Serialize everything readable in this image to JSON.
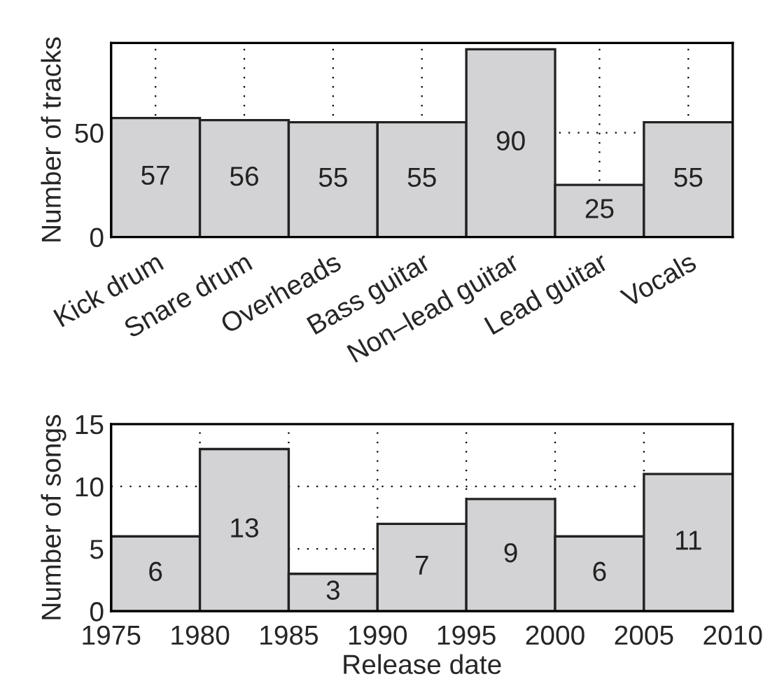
{
  "chart_data": [
    {
      "type": "bar",
      "ylabel": "Number of tracks",
      "categories": [
        "Kick drum",
        "Snare drum",
        "Overheads",
        "Bass guitar",
        "Non–lead guitar",
        "Lead guitar",
        "Vocals"
      ],
      "values": [
        57,
        56,
        55,
        55,
        90,
        25,
        55
      ],
      "color": "#d3d3d5",
      "ylim": [
        0,
        93
      ],
      "yticks": [
        0,
        50
      ],
      "grid": true,
      "data_labels": true,
      "legend": false
    },
    {
      "type": "histogram",
      "xlabel": "Release date",
      "ylabel": "Number of songs",
      "bins": [
        1975,
        1980,
        1985,
        1990,
        1995,
        2000,
        2005,
        2010
      ],
      "values": [
        6,
        13,
        3,
        7,
        9,
        6,
        11
      ],
      "color": "#d3d3d5",
      "xlim": [
        1975,
        2010
      ],
      "xticks": [
        1975,
        1980,
        1985,
        1990,
        1995,
        2000,
        2005,
        2010
      ],
      "ylim": [
        0,
        15
      ],
      "yticks": [
        0,
        5,
        10,
        15
      ],
      "grid": true,
      "data_labels": true,
      "legend": false
    }
  ]
}
